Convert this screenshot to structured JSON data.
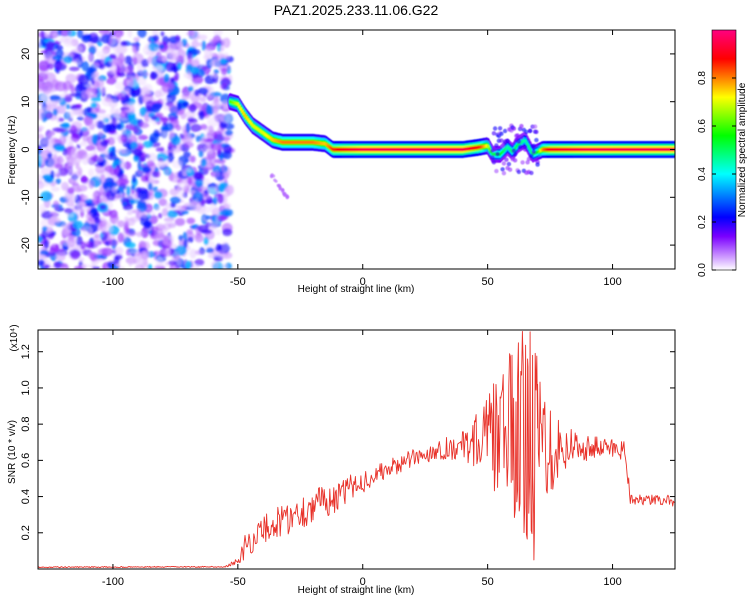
{
  "chart_data": [
    {
      "type": "heatmap",
      "title": "PAZ1.2025.233.11.06.G22",
      "xlabel": "Height of straight line (km)",
      "ylabel": "Frequency (Hz)",
      "xlim": [
        -130,
        125
      ],
      "ylim": [
        -25,
        25
      ],
      "xticks": [
        -100,
        -50,
        0,
        50,
        100
      ],
      "yticks": [
        -20,
        -10,
        0,
        10,
        20
      ],
      "colorbar": {
        "label": "Normalized spectral amplitude",
        "range": [
          0,
          1
        ],
        "ticks": [
          "0.0",
          "0.2",
          "0.4",
          "0.6",
          "0.8"
        ],
        "tick_values": [
          0,
          0.2,
          0.4,
          0.6,
          0.8
        ],
        "colormap": [
          "#ffffff",
          "#b070ff",
          "#6600ff",
          "#0000ff",
          "#00ffff",
          "#00ff00",
          "#ffff00",
          "#ff0000",
          "#ff0080"
        ]
      },
      "noise_region": {
        "x_range": [
          -130,
          -53
        ],
        "freq_range": [
          -25,
          25
        ],
        "amplitude": "0.0-0.35"
      },
      "ridge": {
        "description": "dominant Doppler frequency vs height",
        "x": [
          -53,
          -50,
          -47,
          -44,
          -40,
          -36,
          -32,
          -28,
          -20,
          -15,
          -12,
          -8,
          0,
          20,
          40,
          47,
          50,
          52,
          55,
          58,
          60,
          62,
          65,
          68,
          70,
          72,
          75,
          90,
          110,
          125
        ],
        "freq": [
          10,
          9.5,
          7,
          5,
          3.5,
          2,
          1.5,
          1.5,
          1.5,
          1.2,
          0,
          0,
          0,
          0,
          0,
          0.5,
          0.8,
          -1,
          -1,
          0.5,
          -0.5,
          1,
          2,
          -1,
          -0.5,
          0,
          0,
          0,
          0,
          0
        ],
        "amplitude": [
          0.6,
          0.7,
          0.75,
          0.7,
          0.7,
          0.75,
          0.8,
          0.8,
          0.8,
          0.75,
          0.85,
          0.9,
          0.95,
          0.95,
          0.95,
          0.85,
          0.7,
          0.5,
          0.55,
          0.45,
          0.5,
          0.5,
          0.45,
          0.5,
          0.55,
          0.8,
          0.9,
          0.95,
          0.95,
          0.95
        ]
      },
      "streak": {
        "x": [
          -37,
          -30
        ],
        "freq": [
          -5,
          -10
        ]
      }
    },
    {
      "type": "line",
      "xlabel": "Height of straight line (km)",
      "ylabel": "SNR (10 * v/v)",
      "y_multiplier": "(x10⁴)",
      "xlim": [
        -130,
        125
      ],
      "ylim": [
        0,
        13200
      ],
      "xticks": [
        -100,
        -50,
        0,
        50,
        100
      ],
      "yticks": [
        2000,
        4000,
        6000,
        8000,
        10000,
        12000
      ],
      "ytick_labels": [
        "0.2",
        "0.4",
        "0.6",
        "0.8",
        "1.0",
        "1.2"
      ],
      "series": [
        {
          "name": "SNR",
          "color": "#e8322a",
          "x": [
            -130,
            -55,
            -52,
            -49,
            -47,
            -45,
            -43,
            -40,
            -35,
            -30,
            -25,
            -20,
            -15,
            -10,
            -5,
            0,
            5,
            10,
            15,
            20,
            25,
            30,
            35,
            40,
            45,
            50,
            55,
            60,
            65,
            70,
            75,
            80,
            85,
            90,
            95,
            100,
            105,
            107,
            108,
            110,
            115,
            120,
            125
          ],
          "values": [
            100,
            120,
            300,
            600,
            1300,
            1500,
            1700,
            2200,
            2500,
            2800,
            3100,
            3500,
            3800,
            3900,
            4500,
            4800,
            5200,
            5500,
            5800,
            6100,
            6300,
            6600,
            6700,
            6800,
            7100,
            7200,
            7400,
            7400,
            7400,
            7100,
            7000,
            6700,
            6800,
            6700,
            6700,
            6700,
            6600,
            4000,
            3900,
            3800,
            3800,
            3800,
            3750
          ],
          "noise_amplitude": [
            30,
            30,
            150,
            300,
            700,
            700,
            700,
            800,
            900,
            900,
            1000,
            900,
            900,
            800,
            700,
            600,
            500,
            500,
            500,
            500,
            500,
            500,
            700,
            800,
            1500,
            2500,
            3500,
            5000,
            6000,
            5000,
            3000,
            1500,
            1000,
            700,
            600,
            600,
            600,
            400,
            300,
            300,
            300,
            300,
            300
          ],
          "peaks": [
            {
              "x": 55,
              "value": 9500
            },
            {
              "x": 62,
              "value": 10500
            },
            {
              "x": 66,
              "value": 11600
            },
            {
              "x": 67,
              "value": 13100
            },
            {
              "x": 68,
              "value": 11800
            },
            {
              "x": 68.5,
              "value": 500
            },
            {
              "x": 70,
              "value": 10200
            }
          ]
        }
      ]
    }
  ]
}
